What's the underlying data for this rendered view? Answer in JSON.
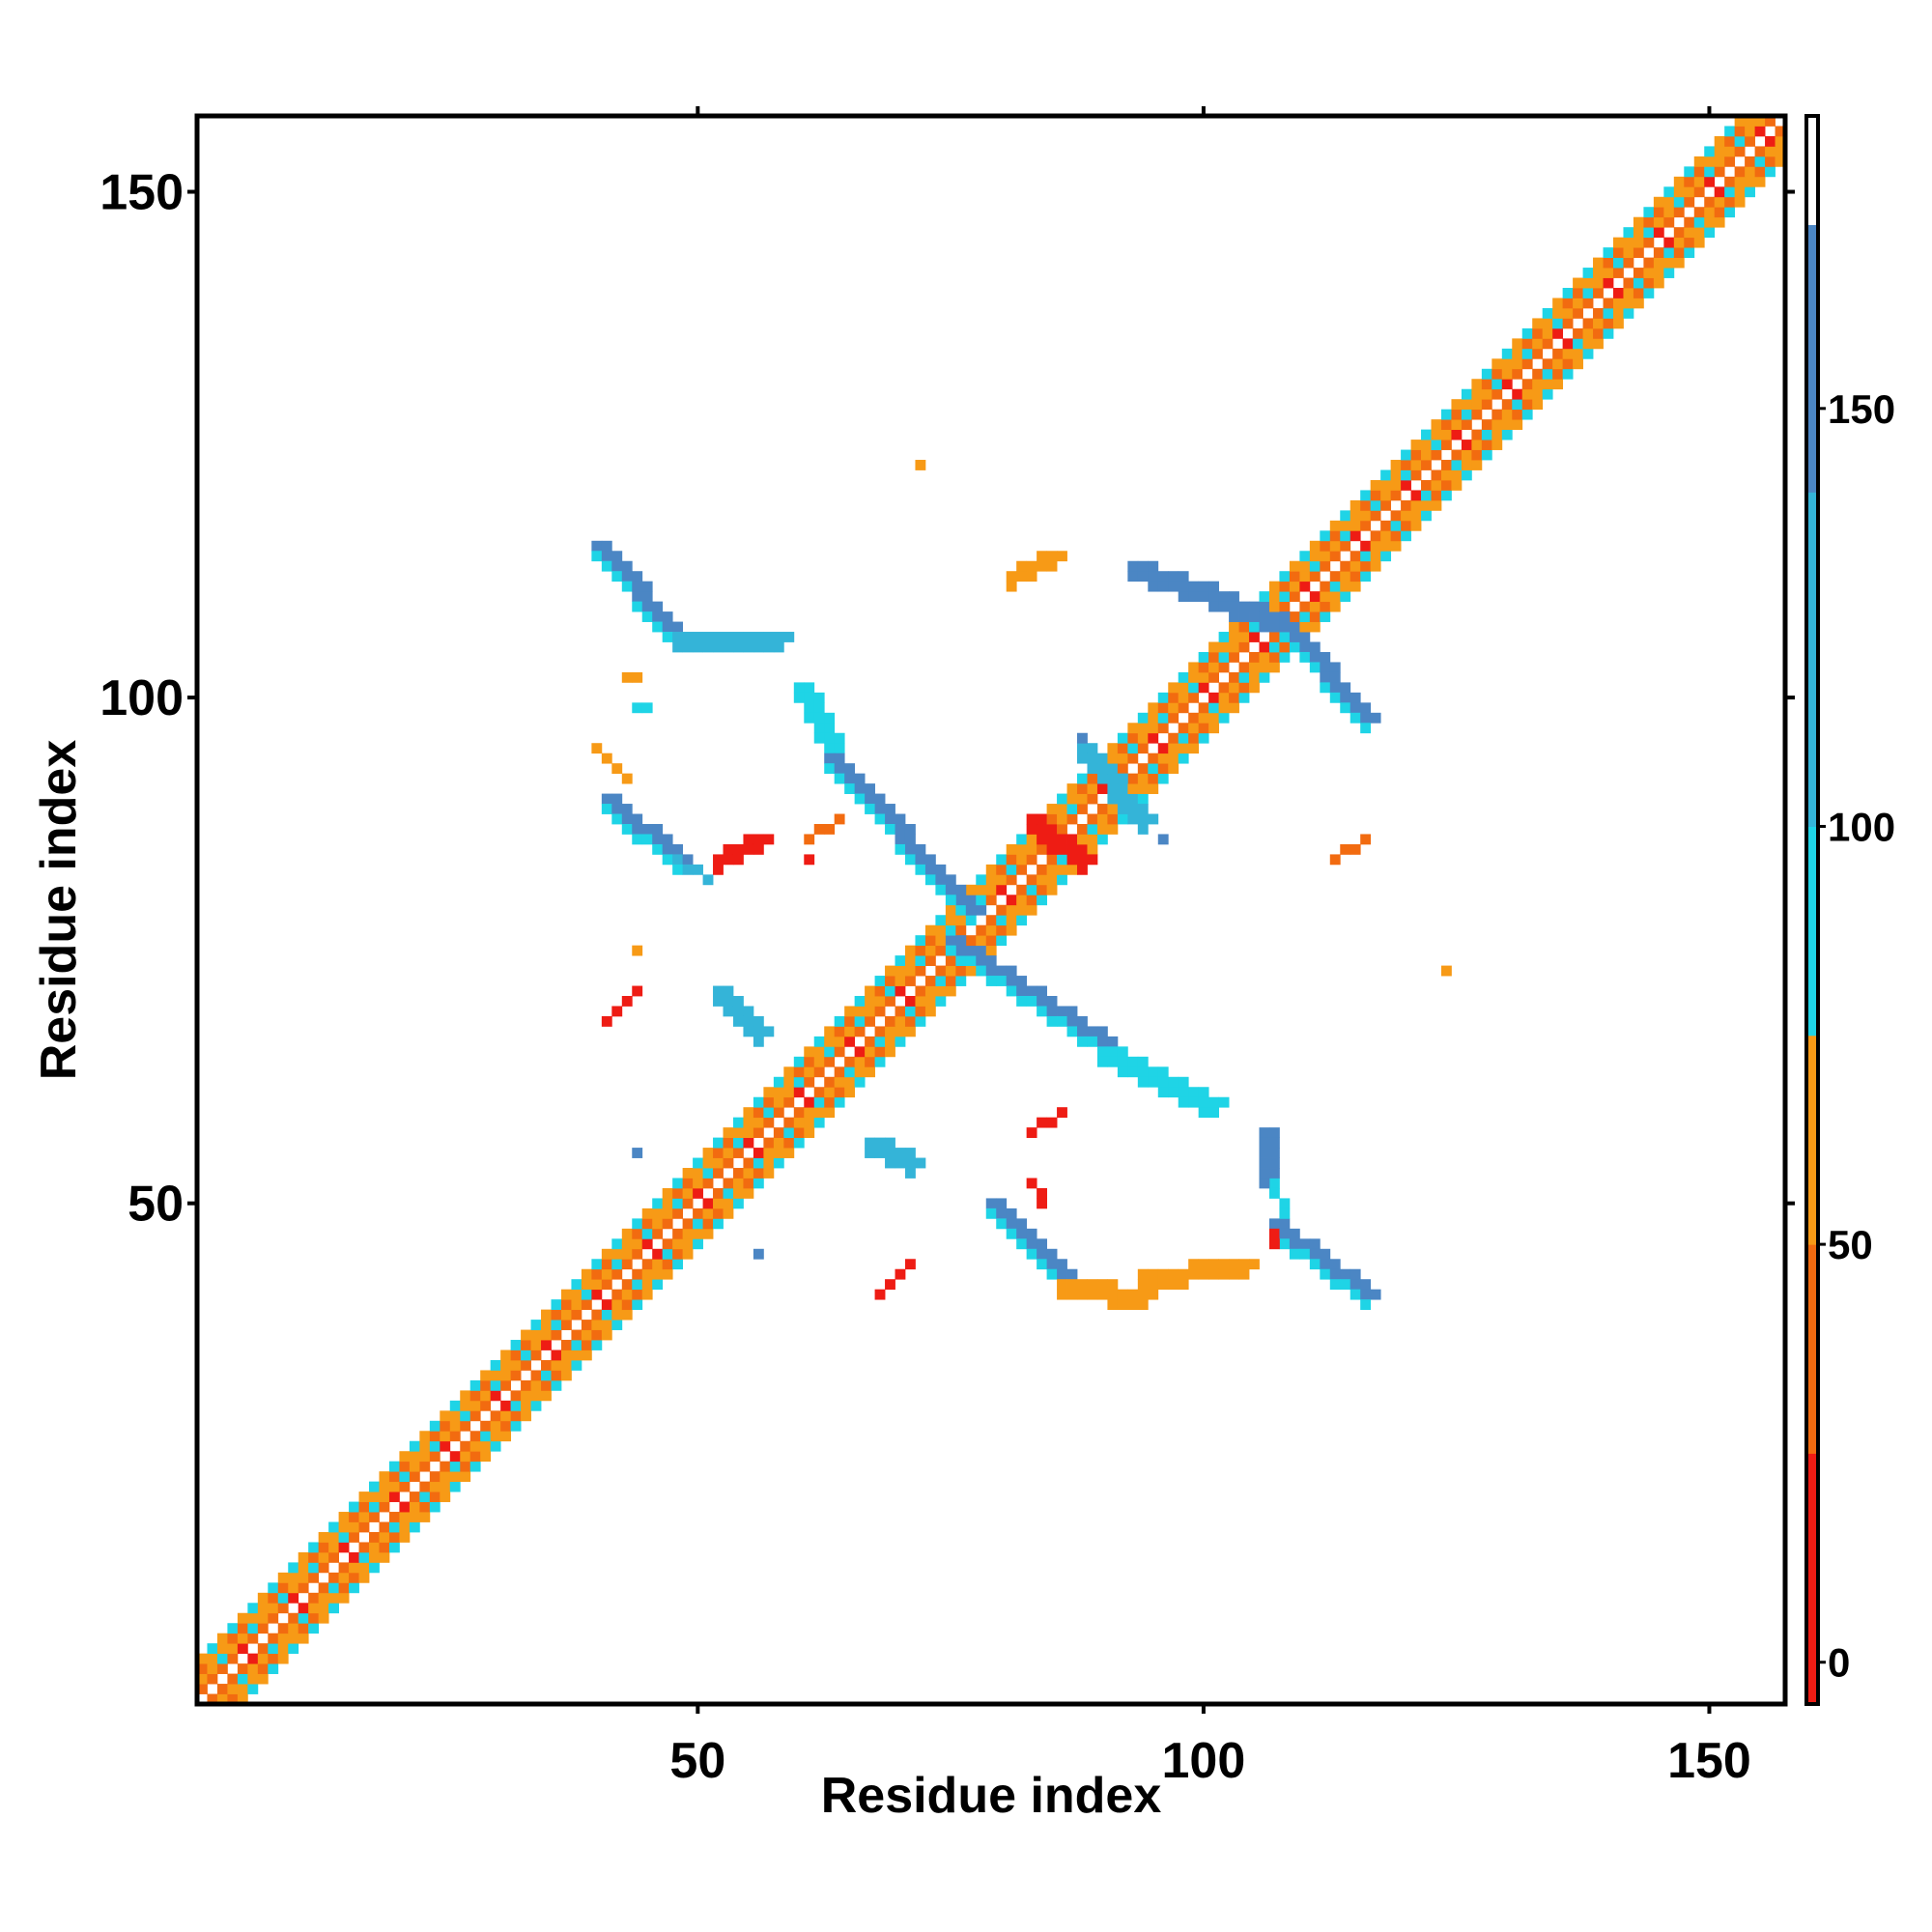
{
  "chart_data": {
    "type": "heatmap",
    "title": "",
    "xlabel": "Residue index",
    "ylabel": "Residue index",
    "xlim": [
      1,
      157
    ],
    "ylim": [
      1,
      157
    ],
    "x_ticks": [
      50,
      100,
      150
    ],
    "y_ticks": [
      50,
      100,
      150
    ],
    "x_tick_labels": [
      "50",
      "100",
      "150"
    ],
    "y_tick_labels": [
      "50",
      "100",
      "150"
    ],
    "grid": false,
    "legend": "right",
    "colorbar": {
      "range": [
        -5,
        185
      ],
      "ticks": [
        0,
        50,
        100,
        150
      ],
      "tick_labels": [
        "0",
        "50",
        "100",
        "150"
      ],
      "bands": [
        {
          "from": -5,
          "to": 25,
          "color": "#ee1c14"
        },
        {
          "from": 25,
          "to": 50,
          "color": "#f26b10"
        },
        {
          "from": 50,
          "to": 75,
          "color": "#f79a16"
        },
        {
          "from": 75,
          "to": 100,
          "color": "#1fd4e6"
        },
        {
          "from": 100,
          "to": 140,
          "color": "#34b4d8"
        },
        {
          "from": 140,
          "to": 172,
          "color": "#4b86c4"
        },
        {
          "from": 172,
          "to": 185,
          "color": "#ffffff"
        }
      ]
    },
    "values": {
      "diagonal_band": {
        "from": 1,
        "to": 157,
        "half_width": 4
      },
      "contact_segments": [
        {
          "x1": 40,
          "y1": 115,
          "x2": 48,
          "y2": 106,
          "value": 145
        },
        {
          "x1": 48,
          "y1": 106,
          "x2": 58,
          "y2": 106,
          "value": 110
        },
        {
          "x1": 40,
          "y1": 95,
          "x2": 43,
          "y2": 92,
          "value": 60
        },
        {
          "x1": 41,
          "y1": 90,
          "x2": 48,
          "y2": 84,
          "value": 145
        },
        {
          "x1": 48,
          "y1": 84,
          "x2": 51,
          "y2": 82,
          "value": 110
        },
        {
          "x1": 44,
          "y1": 99,
          "x2": 45,
          "y2": 99,
          "value": 90
        },
        {
          "x1": 43,
          "y1": 102,
          "x2": 44,
          "y2": 102,
          "value": 50
        },
        {
          "x1": 60,
          "y1": 101,
          "x2": 63,
          "y2": 95,
          "value": 95
        },
        {
          "x1": 63,
          "y1": 94,
          "x2": 77,
          "y2": 79,
          "value": 145
        },
        {
          "x1": 75,
          "y1": 76,
          "x2": 90,
          "y2": 66,
          "value": 145
        },
        {
          "x1": 90,
          "y1": 65,
          "x2": 101,
          "y2": 60,
          "value": 95
        },
        {
          "x1": 79,
          "y1": 50,
          "x2": 86,
          "y2": 43,
          "value": 145
        },
        {
          "x1": 86,
          "y1": 42,
          "x2": 94,
          "y2": 41,
          "value": 60
        },
        {
          "x1": 94,
          "y1": 43,
          "x2": 104,
          "y2": 44,
          "value": 50
        },
        {
          "x1": 107,
          "y1": 48,
          "x2": 116,
          "y2": 41,
          "value": 145
        },
        {
          "x1": 93,
          "y1": 113,
          "x2": 107,
          "y2": 108,
          "value": 140
        },
        {
          "x1": 108,
          "y1": 107,
          "x2": 116,
          "y2": 98,
          "value": 145
        },
        {
          "x1": 88,
          "y1": 95,
          "x2": 94,
          "y2": 88,
          "value": 100
        },
        {
          "x1": 83,
          "y1": 88,
          "x2": 88,
          "y2": 84,
          "value": 5
        },
        {
          "x1": 113,
          "y1": 84,
          "x2": 116,
          "y2": 86,
          "value": 45
        },
        {
          "x1": 81,
          "y1": 112,
          "x2": 85,
          "y2": 114,
          "value": 55
        },
        {
          "x1": 41,
          "y1": 68,
          "x2": 44,
          "y2": 71,
          "value": 10
        },
        {
          "x1": 52,
          "y1": 71,
          "x2": 56,
          "y2": 67,
          "value": 130
        },
        {
          "x1": 67,
          "y1": 56,
          "x2": 71,
          "y2": 54,
          "value": 100
        },
        {
          "x1": 68,
          "y1": 41,
          "x2": 71,
          "y2": 44,
          "value": 10
        },
        {
          "x1": 83,
          "y1": 52,
          "x2": 84,
          "y2": 50,
          "value": 5
        },
        {
          "x1": 83,
          "y1": 57,
          "x2": 86,
          "y2": 59,
          "value": 20
        },
        {
          "x1": 52,
          "y1": 84,
          "x2": 56,
          "y2": 86,
          "value": 10
        },
        {
          "x1": 61,
          "y1": 86,
          "x2": 64,
          "y2": 88,
          "value": 30
        },
        {
          "x1": 107,
          "y1": 52,
          "x2": 108,
          "y2": 49,
          "value": 95
        },
        {
          "x1": 106,
          "y1": 57,
          "x2": 106,
          "y2": 53,
          "value": 140
        },
        {
          "x1": 107,
          "y1": 47,
          "x2": 107,
          "y2": 46,
          "value": 10
        }
      ],
      "isolated_cells": [
        {
          "x": 72,
          "y": 123,
          "value": 50
        },
        {
          "x": 124,
          "y": 73,
          "value": 50
        },
        {
          "x": 44,
          "y": 55,
          "value": 145
        },
        {
          "x": 56,
          "y": 45,
          "value": 145
        },
        {
          "x": 88,
          "y": 96,
          "value": 145
        },
        {
          "x": 96,
          "y": 86,
          "value": 145
        },
        {
          "x": 61,
          "y": 84,
          "value": 10
        },
        {
          "x": 44,
          "y": 75,
          "value": 50
        }
      ]
    }
  }
}
